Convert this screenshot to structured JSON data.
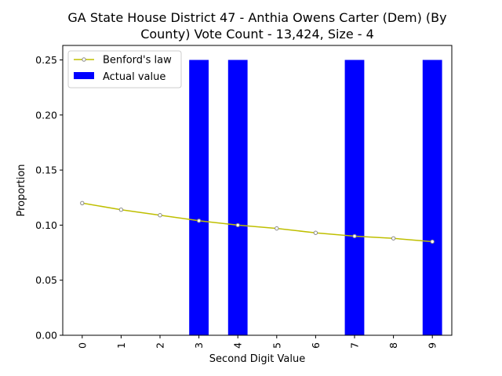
{
  "chart_data": {
    "type": "bar",
    "title": "GA State House District 47 - Anthia Owens Carter (Dem) (By County) Vote Count - 13,424, Size - 4",
    "title_lines": [
      "GA State House District 47 - Anthia Owens Carter (Dem) (By",
      "County) Vote Count - 13,424, Size - 4"
    ],
    "xlabel": "Second Digit Value",
    "ylabel": "Proportion",
    "categories": [
      "0",
      "1",
      "2",
      "3",
      "4",
      "5",
      "6",
      "7",
      "8",
      "9"
    ],
    "ylim": [
      0,
      0.25
    ],
    "yticks": [
      "0.00",
      "0.05",
      "0.10",
      "0.15",
      "0.20",
      "0.25"
    ],
    "grid": false,
    "legend_position": "top-left",
    "series": [
      {
        "name": "Benford's law",
        "kind": "line",
        "color": "#bfbf00",
        "values": [
          0.12,
          0.114,
          0.109,
          0.104,
          0.1,
          0.097,
          0.093,
          0.09,
          0.088,
          0.085
        ]
      },
      {
        "name": "Actual value",
        "kind": "bar",
        "color": "#0000ff",
        "values": [
          0,
          0,
          0,
          0.25,
          0.25,
          0,
          0,
          0.25,
          0,
          0.25
        ]
      }
    ]
  }
}
